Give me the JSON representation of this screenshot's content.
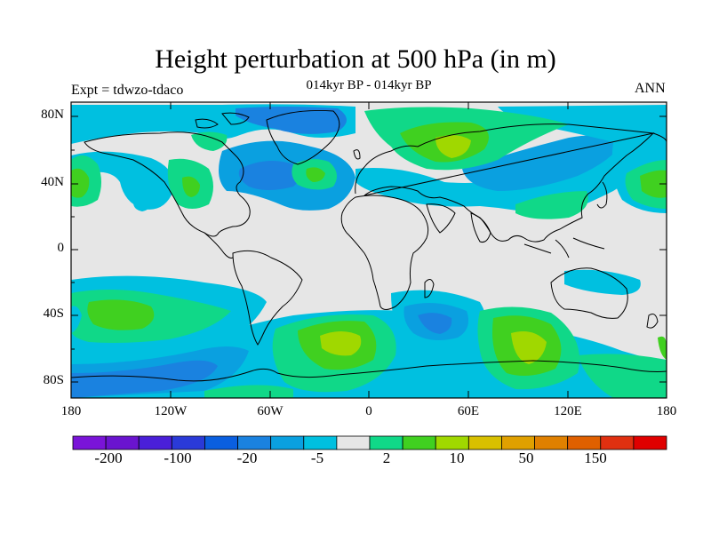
{
  "title": "Height perturbation at 500 hPa (in m)",
  "subtitle": "014kyr BP - 014kyr BP",
  "left_label": "Expt = tdwzo-tdaco",
  "right_label": "ANN",
  "y_ticks": [
    "80N",
    "40N",
    "0",
    "40S",
    "80S"
  ],
  "x_ticks": [
    "180",
    "120W",
    "60W",
    "0",
    "60E",
    "120E",
    "180"
  ],
  "colorbar": {
    "colors": [
      "#7a14d8",
      "#6a14cf",
      "#4a1fd8",
      "#2a3ad8",
      "#0a5fe0",
      "#1a82e0",
      "#0aa0e0",
      "#00c0e0",
      "#e6e6e6",
      "#10d888",
      "#40d020",
      "#a0d800",
      "#d8c000",
      "#e0a000",
      "#e08000",
      "#e06000",
      "#e03010",
      "#e00000"
    ],
    "labels": [
      "-200",
      "-100",
      "-20",
      "-5",
      "2",
      "10",
      "50",
      "150"
    ]
  },
  "colors": {
    "background": "#e6e6e6",
    "negative_light": "#00c0e0",
    "negative_mid": "#0aa0e0",
    "negative_strong": "#1a82e0",
    "positive_light": "#10d888",
    "positive_mid": "#40d020",
    "positive_strong": "#a0d800"
  }
}
